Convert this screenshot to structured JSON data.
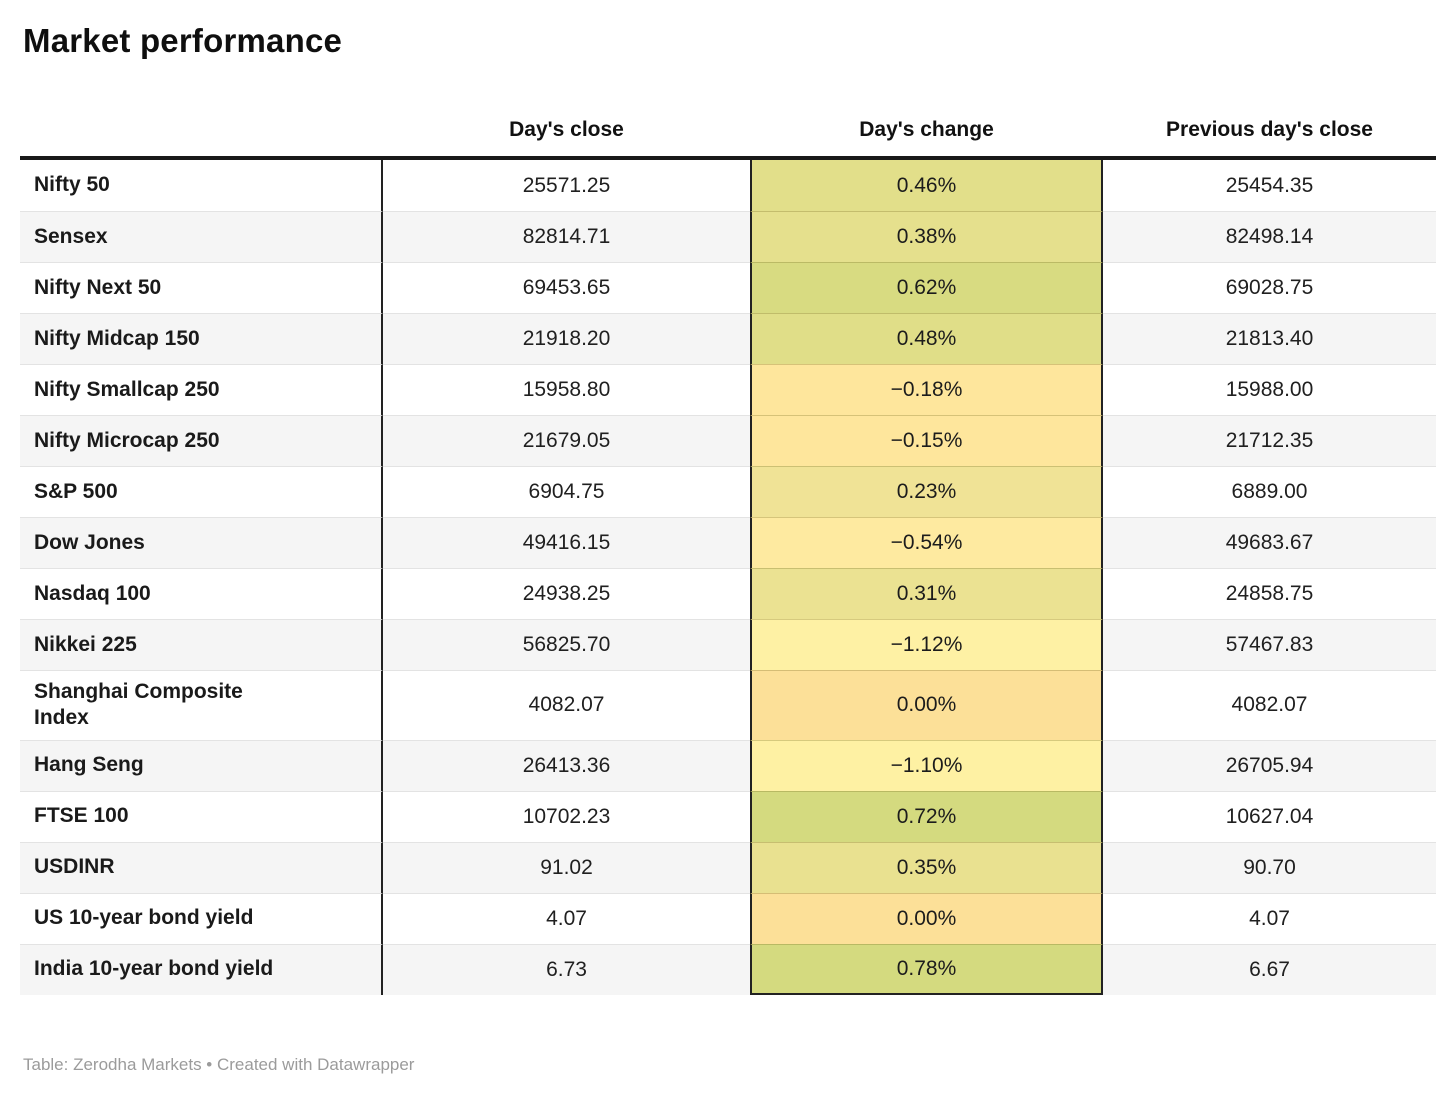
{
  "title": "Market performance",
  "footer_credit": "Table: Zerodha Markets • Created with Datawrapper",
  "colors": {
    "table_top_border": "#191919",
    "column_divider": "#222222",
    "alt_row_bg": "#f5f5f5",
    "row_divider": "#e3e3e3",
    "footer_text": "#9b9b9b",
    "positive_strong": "#d4da7f",
    "neutral_zero": "#fce098",
    "negative_pale": "#fef1a3"
  },
  "chart_data": {
    "type": "table",
    "title": "Market performance",
    "columns": [
      "",
      "Day's close",
      "Day's change",
      "Previous day's close"
    ],
    "legend_note": "Day's change cells are shaded on a diverging yellow-green scale",
    "rows": [
      {
        "label": "Nifty 50",
        "close": "25571.25",
        "change": "0.46%",
        "change_bg": "#e2df8a",
        "prev": "25454.35"
      },
      {
        "label": "Sensex",
        "close": "82814.71",
        "change": "0.38%",
        "change_bg": "#e5e08d",
        "prev": "82498.14"
      },
      {
        "label": "Nifty Next 50",
        "close": "69453.65",
        "change": "0.62%",
        "change_bg": "#d8db81",
        "prev": "69028.75"
      },
      {
        "label": "Nifty Midcap 150",
        "close": "21918.20",
        "change": "0.48%",
        "change_bg": "#e0de88",
        "prev": "21813.40"
      },
      {
        "label": "Nifty Smallcap 250",
        "close": "15958.80",
        "change": "−0.18%",
        "change_bg": "#fee69c",
        "prev": "15988.00"
      },
      {
        "label": "Nifty Microcap 250",
        "close": "21679.05",
        "change": "−0.15%",
        "change_bg": "#fee69c",
        "prev": "21712.35"
      },
      {
        "label": "S&P 500",
        "close": "6904.75",
        "change": "0.23%",
        "change_bg": "#f0e396",
        "prev": "6889.00"
      },
      {
        "label": "Dow Jones",
        "close": "49416.15",
        "change": "−0.54%",
        "change_bg": "#feeaa0",
        "prev": "49683.67"
      },
      {
        "label": "Nasdaq 100",
        "close": "24938.25",
        "change": "0.31%",
        "change_bg": "#ebe292",
        "prev": "24858.75"
      },
      {
        "label": "Nikkei 225",
        "close": "56825.70",
        "change": "−1.12%",
        "change_bg": "#fef1a4",
        "prev": "57467.83"
      },
      {
        "label": "Shanghai Composite\nIndex",
        "close": "4082.07",
        "change": "0.00%",
        "change_bg": "#fce098",
        "prev": "4082.07"
      },
      {
        "label": "Hang Seng",
        "close": "26413.36",
        "change": "−1.10%",
        "change_bg": "#fef1a3",
        "prev": "26705.94"
      },
      {
        "label": "FTSE 100",
        "close": "10702.23",
        "change": "0.72%",
        "change_bg": "#d4da7f",
        "prev": "10627.04"
      },
      {
        "label": "USDINR",
        "close": "91.02",
        "change": "0.35%",
        "change_bg": "#e9e190",
        "prev": "90.70"
      },
      {
        "label": "US 10-year bond yield",
        "close": "4.07",
        "change": "0.00%",
        "change_bg": "#fce098",
        "prev": "4.07"
      },
      {
        "label": "India 10-year bond yield",
        "close": "6.73",
        "change": "0.78%",
        "change_bg": "#d4da7f",
        "prev": "6.67"
      }
    ]
  }
}
